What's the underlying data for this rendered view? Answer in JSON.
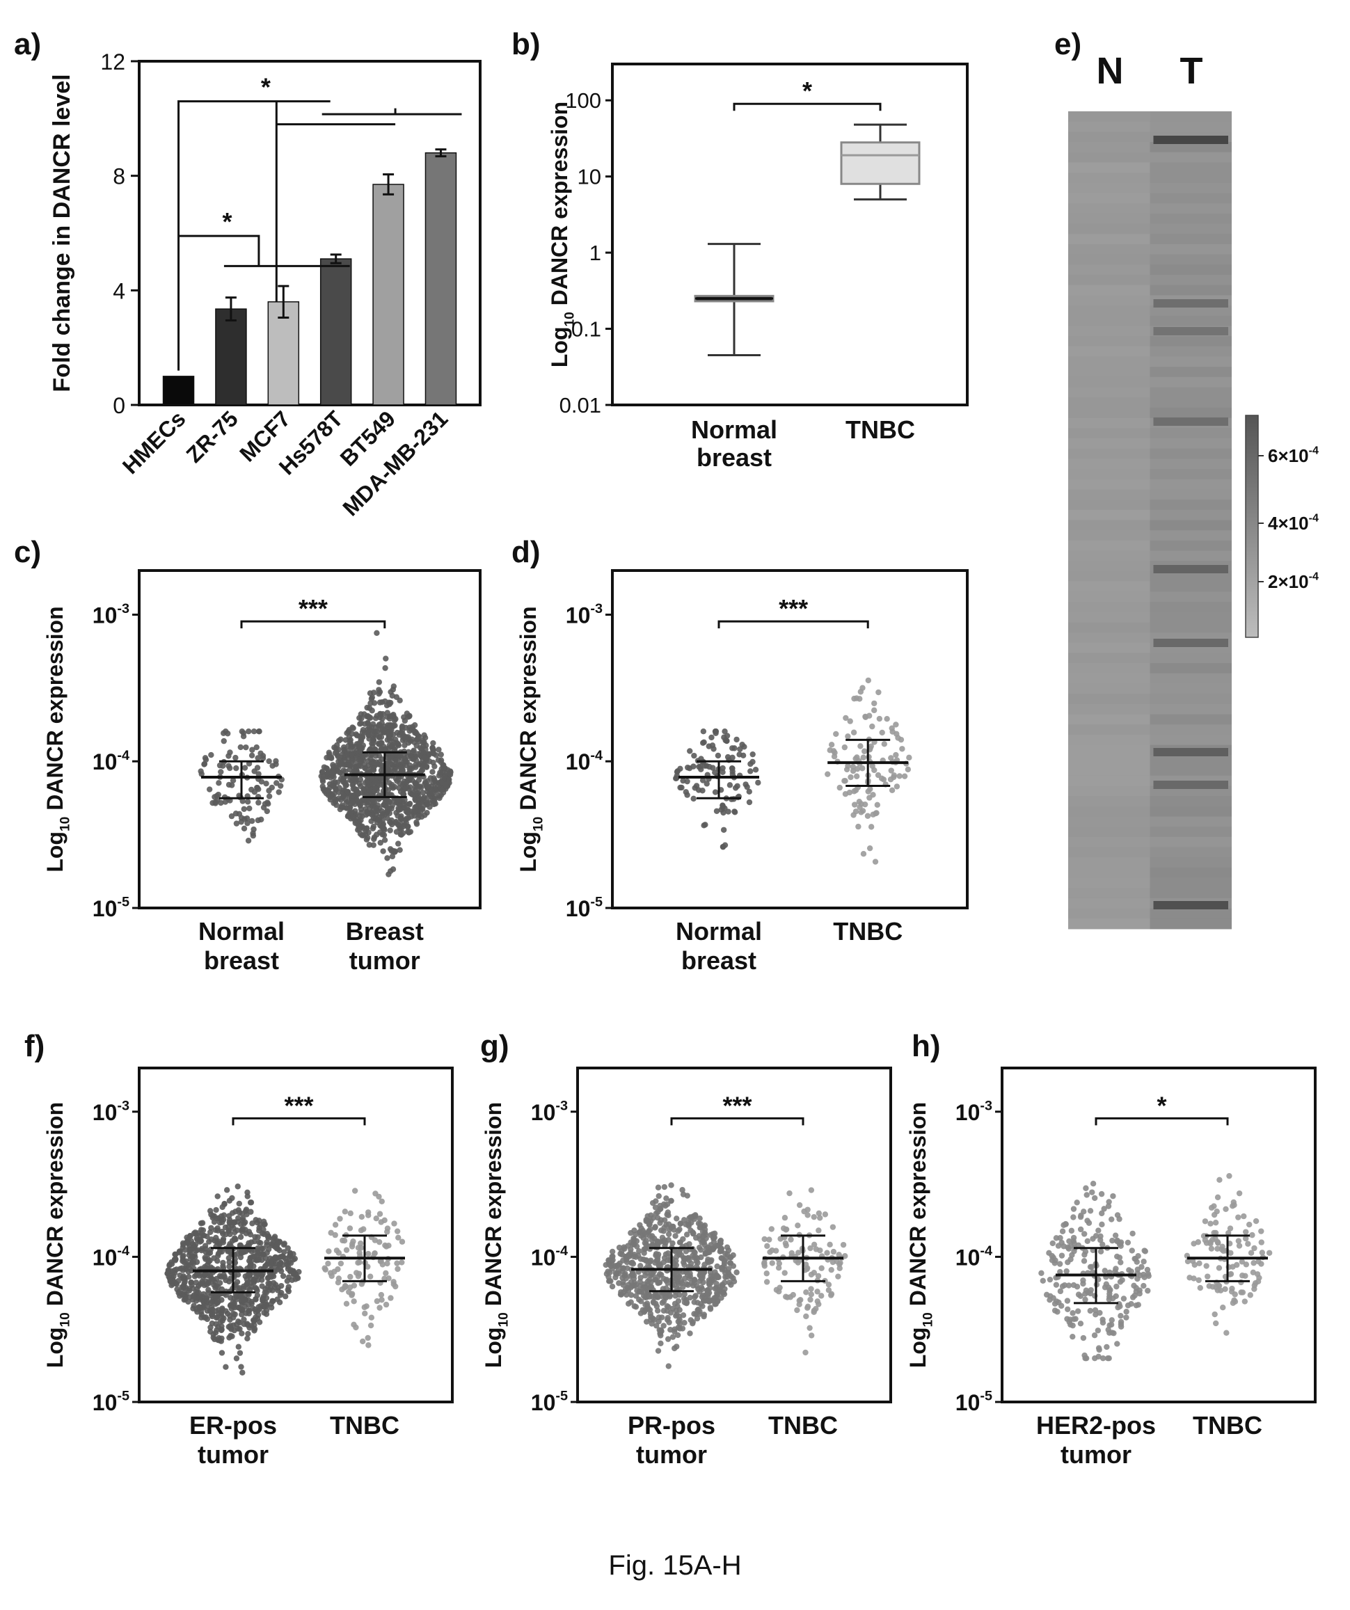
{
  "caption": "Fig. 15A-H",
  "chart_data": [
    {
      "panel": "a)",
      "type": "bar",
      "ylabel": "Fold change in DANCR level",
      "categories": [
        "HMECs",
        "ZR-75",
        "MCF7",
        "Hs578T",
        "BT549",
        "MDA-MB-231"
      ],
      "values": [
        1.0,
        3.35,
        3.6,
        5.1,
        7.7,
        8.8
      ],
      "errors": [
        0.0,
        0.4,
        0.55,
        0.15,
        0.35,
        0.12
      ],
      "bar_colors": [
        "#0a0a0a",
        "#2e2e2e",
        "#bdbdbd",
        "#4a4a4a",
        "#a0a0a0",
        "#767676"
      ],
      "ylim": [
        0,
        12
      ],
      "yticks": [
        "0",
        "4",
        "8",
        "12"
      ],
      "significance": [
        "*",
        "*"
      ]
    },
    {
      "panel": "b)",
      "type": "box",
      "ylabel": "Log10 DANCR expression",
      "categories": [
        "Normal\nbreast",
        "TNBC"
      ],
      "y_scale": "log",
      "ylim": [
        0.01,
        300
      ],
      "yticks": [
        "0.01",
        "0.1",
        "1",
        "10",
        "100"
      ],
      "groups": [
        {
          "median": 0.25,
          "q1": 0.23,
          "q3": 0.27,
          "whisker_low": 0.045,
          "whisker_high": 1.3
        },
        {
          "median": 19,
          "q1": 8,
          "q3": 28,
          "whisker_low": 5,
          "whisker_high": 48
        }
      ],
      "significance": "*"
    },
    {
      "panel": "c)",
      "type": "scatter",
      "ylabel": "Log10 DANCR expression",
      "y_scale": "log",
      "ylim": [
        1e-05,
        0.002
      ],
      "yticks": [
        "10-5",
        "10-4",
        "10-3"
      ],
      "categories": [
        "Normal\nbreast",
        "Breast\ntumor"
      ],
      "groups": [
        {
          "median": 7.8e-05,
          "q1": 5.6e-05,
          "q3": 0.0001,
          "n": 114,
          "min": 1.2e-05,
          "max": 0.00016,
          "color": "#5b5b5b"
        },
        {
          "median": 8.1e-05,
          "q1": 5.7e-05,
          "q3": 0.000115,
          "n": 1100,
          "min": 1.05e-05,
          "max": 0.00075,
          "color": "#5b5b5b"
        }
      ],
      "significance": "***"
    },
    {
      "panel": "d)",
      "type": "scatter",
      "ylabel": "Log10 DANCR expression",
      "y_scale": "log",
      "ylim": [
        1e-05,
        0.002
      ],
      "yticks": [
        "10-5",
        "10-4",
        "10-3"
      ],
      "categories": [
        "Normal\nbreast",
        "TNBC"
      ],
      "groups": [
        {
          "median": 7.8e-05,
          "q1": 5.6e-05,
          "q3": 0.0001,
          "n": 114,
          "min": 1.2e-05,
          "max": 0.00016,
          "color": "#5b5b5b"
        },
        {
          "median": 9.8e-05,
          "q1": 6.8e-05,
          "q3": 0.00014,
          "n": 116,
          "min": 1.05e-05,
          "max": 0.00072,
          "color": "#9a9a9a"
        }
      ],
      "significance": "***"
    },
    {
      "panel": "e)",
      "type": "heatmap",
      "columns": [
        "N",
        "T"
      ],
      "colorbar_ticks": [
        "6×10",
        "4×10",
        "2×10"
      ],
      "colorbar_exponent": "-4"
    },
    {
      "panel": "f)",
      "type": "scatter",
      "ylabel": "Log10 DANCR expression",
      "y_scale": "log",
      "ylim": [
        1e-05,
        0.002
      ],
      "yticks": [
        "10-5",
        "10-4",
        "10-3"
      ],
      "categories": [
        "ER-pos\ntumor",
        "TNBC"
      ],
      "groups": [
        {
          "median": 8e-05,
          "q1": 5.7e-05,
          "q3": 0.000115,
          "n": 800,
          "min": 1.05e-05,
          "max": 0.00065,
          "color": "#5b5b5b"
        },
        {
          "median": 9.8e-05,
          "q1": 6.8e-05,
          "q3": 0.00014,
          "n": 116,
          "min": 1.05e-05,
          "max": 0.00072,
          "color": "#9a9a9a"
        }
      ],
      "significance": "***"
    },
    {
      "panel": "g)",
      "type": "scatter",
      "ylabel": "Log10 DANCR expression",
      "y_scale": "log",
      "ylim": [
        1e-05,
        0.002
      ],
      "yticks": [
        "10-5",
        "10-4",
        "10-3"
      ],
      "categories": [
        "PR-pos\ntumor",
        "TNBC"
      ],
      "groups": [
        {
          "median": 8.2e-05,
          "q1": 5.8e-05,
          "q3": 0.000115,
          "n": 700,
          "min": 1.3e-05,
          "max": 0.00042,
          "color": "#777777"
        },
        {
          "median": 9.8e-05,
          "q1": 6.8e-05,
          "q3": 0.00014,
          "n": 116,
          "min": 1.05e-05,
          "max": 0.00072,
          "color": "#9a9a9a"
        }
      ],
      "significance": "***"
    },
    {
      "panel": "h)",
      "type": "scatter",
      "ylabel": "Log10 DANCR expression",
      "y_scale": "log",
      "ylim": [
        1e-05,
        0.002
      ],
      "yticks": [
        "10-5",
        "10-4",
        "10-3"
      ],
      "categories": [
        "HER2-pos\ntumor",
        "TNBC"
      ],
      "groups": [
        {
          "median": 7.5e-05,
          "q1": 4.8e-05,
          "q3": 0.000115,
          "n": 240,
          "min": 2e-05,
          "max": 0.00075,
          "color": "#8a8a8a"
        },
        {
          "median": 9.8e-05,
          "q1": 6.8e-05,
          "q3": 0.00014,
          "n": 116,
          "min": 1.05e-05,
          "max": 0.00072,
          "color": "#9a9a9a"
        }
      ],
      "significance": "*"
    }
  ]
}
